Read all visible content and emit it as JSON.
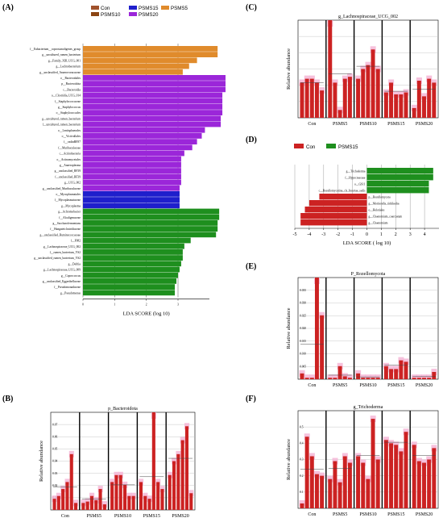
{
  "panels": [
    {
      "letter": "(A)"
    },
    {
      "letter": "(B)"
    },
    {
      "letter": "(C)"
    },
    {
      "letter": "(D)"
    },
    {
      "letter": "(E)"
    },
    {
      "letter": "(F)"
    }
  ],
  "colors": {
    "Con": "#a0522d",
    "PSMS5": "#e08b2c",
    "PSMS10": "#8b4513",
    "PSMS15": "#1f1fcc",
    "PSMS20": "#9b26d9",
    "green": "#1e8f1e",
    "red": "#cc2222",
    "pink": "#f4b6d6"
  },
  "chart_data": [
    {
      "panel": "A",
      "type": "bar",
      "orientation": "horizontal",
      "xlabel": "LDA SCORE (log 10)",
      "xlim": [
        0,
        4.5
      ],
      "ticks": [
        0,
        1,
        2,
        3
      ],
      "legend": [
        {
          "name": "Con",
          "color": "#a0522d"
        },
        {
          "name": "PSMS15",
          "color": "#1f1fcc"
        },
        {
          "name": "PSMS5",
          "color": "#e08b2c"
        },
        {
          "name": "PSMS10",
          "color": "#8b4513"
        },
        {
          "name": "PSMS20",
          "color": "#9b26d9"
        }
      ],
      "groups_order": [
        "PSMS5",
        "PSMS20",
        "PSMS15",
        "Con"
      ],
      "bars": [
        {
          "label": "f__Eubacterium__coprostanoligenes_group",
          "value": 4.25,
          "group": "PSMS5"
        },
        {
          "label": "g__uncultured_rumen_bacterium",
          "value": 4.25,
          "group": "PSMS5"
        },
        {
          "label": "g__Family_XIII_UCG_001",
          "value": 3.6,
          "group": "PSMS5"
        },
        {
          "label": "g__Lachnobacterium",
          "value": 3.35,
          "group": "PSMS5"
        },
        {
          "label": "g__unclassified_Anaerovoracaceae",
          "value": 3.15,
          "group": "PSMS5"
        },
        {
          "label": "o__Bacteroidales",
          "value": 4.5,
          "group": "PSMS20"
        },
        {
          "label": "p__Bacteroidota",
          "value": 4.5,
          "group": "PSMS20"
        },
        {
          "label": "c__Bacteroidia",
          "value": 4.5,
          "group": "PSMS20"
        },
        {
          "label": "o__Clostridia_UCG_014",
          "value": 4.4,
          "group": "PSMS20"
        },
        {
          "label": "f__Staphylococcaceae",
          "value": 4.4,
          "group": "PSMS20"
        },
        {
          "label": "g__Staphylococcus",
          "value": 4.4,
          "group": "PSMS20"
        },
        {
          "label": "o__Staphylococcales",
          "value": 4.4,
          "group": "PSMS20"
        },
        {
          "label": "g__uncultured_rumen_bacterium",
          "value": 4.35,
          "group": "PSMS20"
        },
        {
          "label": "f__uncultured_rumen_bacterium",
          "value": 4.35,
          "group": "PSMS20"
        },
        {
          "label": "o__Lentisphaerales",
          "value": 3.85,
          "group": "PSMS20"
        },
        {
          "label": "o__Victivallales",
          "value": 3.75,
          "group": "PSMS20"
        },
        {
          "label": "f__vadinBE97",
          "value": 3.6,
          "group": "PSMS20"
        },
        {
          "label": "f__Muribaculaceae",
          "value": 3.45,
          "group": "PSMS20"
        },
        {
          "label": "c__Actinobacteria",
          "value": 3.2,
          "group": "PSMS20"
        },
        {
          "label": "o__Actinomycetales",
          "value": 3.1,
          "group": "PSMS20"
        },
        {
          "label": "g__Anaeroplasma",
          "value": 3.1,
          "group": "PSMS20"
        },
        {
          "label": "g__unclassified_RF39",
          "value": 3.1,
          "group": "PSMS20"
        },
        {
          "label": "f__unclassified_RF39",
          "value": 3.1,
          "group": "PSMS20"
        },
        {
          "label": "g__UCG_002",
          "value": 3.1,
          "group": "PSMS20"
        },
        {
          "label": "g__unclassified_Muribaculaceae",
          "value": 3.05,
          "group": "PSMS20"
        },
        {
          "label": "o__Mycoplasmatales",
          "value": 3.05,
          "group": "PSMS15"
        },
        {
          "label": "f__Mycoplasmataceae",
          "value": 3.05,
          "group": "PSMS15"
        },
        {
          "label": "g__Mycoplasma",
          "value": 3.05,
          "group": "PSMS15"
        },
        {
          "label": "g__Achromobacter",
          "value": 4.3,
          "group": "Con"
        },
        {
          "label": "f__Alcaligenaceae",
          "value": 4.3,
          "group": "Con"
        },
        {
          "label": "g__Saccharofermentans",
          "value": 4.25,
          "group": "Con"
        },
        {
          "label": "f__Hungateiclostridiaceae",
          "value": 4.25,
          "group": "Con"
        },
        {
          "label": "g__unclassified_Ruminococcaceae",
          "value": 4.2,
          "group": "Con"
        },
        {
          "label": "f__F082",
          "value": 3.4,
          "group": "Con"
        },
        {
          "label": "g__Lachnospiraceae_UCG_002",
          "value": 3.2,
          "group": "Con"
        },
        {
          "label": "f__rumen_bacterium_YS2",
          "value": 3.15,
          "group": "Con"
        },
        {
          "label": "g__unclassified_rumen_bacterium_YS2",
          "value": 3.15,
          "group": "Con"
        },
        {
          "label": "g__Delftia",
          "value": 3.1,
          "group": "Con"
        },
        {
          "label": "g__Lachnospiraceae_UCG_009",
          "value": 3.05,
          "group": "Con"
        },
        {
          "label": "g__Coprococcus",
          "value": 3.0,
          "group": "Con"
        },
        {
          "label": "g__unclassified_Eggerthellaceae",
          "value": 2.95,
          "group": "Con"
        },
        {
          "label": "f__Pseudomonadaceae",
          "value": 2.9,
          "group": "Con"
        },
        {
          "label": "g__Pseudomonas",
          "value": 2.9,
          "group": "Con"
        }
      ]
    },
    {
      "panel": "B",
      "type": "bar",
      "title": "p_Bacteroidota",
      "ylabel": "Relative abundance",
      "yticks": [
        "0.01",
        "0.02",
        "0.03",
        "0.04",
        "0.05",
        "0.06",
        "0.07"
      ],
      "categories": [
        "Con",
        "PSMS5",
        "PSMS10",
        "PSMS15",
        "PSMS20"
      ],
      "ylim": [
        0,
        0.07
      ],
      "values": [
        [
          0.008,
          0.01,
          0.015,
          0.02,
          0.04,
          0.005
        ],
        [
          0.005,
          0.006,
          0.01,
          0.007,
          0.015,
          0.004
        ],
        [
          0.02,
          0.025,
          0.025,
          0.018,
          0.01,
          0.01
        ],
        [
          0.02,
          0.01,
          0.008,
          0.07,
          0.02,
          0.015
        ],
        [
          0.025,
          0.035,
          0.04,
          0.05,
          0.06,
          0.012
        ]
      ]
    },
    {
      "panel": "C",
      "type": "bar",
      "title": "g_Lachnospiraceae_UCG_002",
      "ylabel": "Relative abundance",
      "categories": [
        "Con",
        "PSMS5",
        "PSMS10",
        "PSMS15",
        "PSMS20"
      ],
      "ylim": [
        0,
        0.05
      ],
      "values": [
        [
          0.018,
          0.02,
          0.02,
          0.018,
          0.014
        ],
        [
          0.05,
          0.018,
          0.004,
          0.02,
          0.021
        ],
        [
          0.02,
          0.025,
          0.027,
          0.035,
          0.025
        ],
        [
          0.013,
          0.018,
          0.012,
          0.012,
          0.013
        ],
        [
          0.005,
          0.019,
          0.011,
          0.02,
          0.018
        ]
      ]
    },
    {
      "panel": "D",
      "type": "bar",
      "orientation": "horizontal",
      "xlabel": "LDA SCORE ( log 10)",
      "xlim": [
        -5,
        5
      ],
      "ticks": [
        -5,
        -4,
        -3,
        -2,
        -1,
        0,
        1,
        2,
        3,
        4
      ],
      "legend": [
        {
          "name": "Con",
          "color": "#cc2222"
        },
        {
          "name": "PSMS15",
          "color": "#1e8f1e"
        }
      ],
      "bars": [
        {
          "label": "g__Trichoderma",
          "value": 4.6,
          "group": "PSMS15"
        },
        {
          "label": "f__Hypocreaceae",
          "value": 4.6,
          "group": "PSMS15"
        },
        {
          "label": "o__GS11",
          "value": 4.3,
          "group": "PSMS15"
        },
        {
          "label": "c__Rozellomycotina_cls_Incertae_sedis",
          "value": 4.3,
          "group": "PSMS15"
        },
        {
          "label": "p__Rozellomycota",
          "value": -3.3,
          "group": "Con"
        },
        {
          "label": "g__Mortierella_rishikesha",
          "value": -4.0,
          "group": "Con"
        },
        {
          "label": "o__Helotiales",
          "value": -4.3,
          "group": "Con"
        },
        {
          "label": "g__Chaetomium_coarctatum",
          "value": -4.6,
          "group": "Con"
        },
        {
          "label": "g__Chaetomium",
          "value": -4.6,
          "group": "Con"
        }
      ]
    },
    {
      "panel": "E",
      "type": "bar",
      "title": "P_Rozellomycota",
      "ylabel": "Relative abundance",
      "yticks": [
        "0.005",
        "0.010",
        "0.015",
        "0.020",
        "0.025",
        "0.030",
        "0.035"
      ],
      "categories": [
        "Con",
        "PSMS5",
        "PSMS10",
        "PSMS15",
        "PSMS20"
      ],
      "ylim": [
        0,
        0.035
      ],
      "values": [
        [
          0.002,
          0.0005,
          0.0005,
          0.035,
          0.022
        ],
        [
          0.0005,
          0.0005,
          0.0045,
          0.001,
          0.0005
        ],
        [
          0.002,
          0.0005,
          0.0005,
          0.0005,
          0.0005
        ],
        [
          0.0045,
          0.0035,
          0.0035,
          0.0065,
          0.006
        ],
        [
          0.0005,
          0.0005,
          0.0005,
          0.0005,
          0.0025
        ]
      ]
    },
    {
      "panel": "F",
      "type": "bar",
      "title": "g_Trichoderma",
      "ylabel": "Relative abundance",
      "yticks": [
        "0.1",
        "0.2",
        "0.3",
        "0.4",
        "0.5"
      ],
      "categories": [
        "Con",
        "PSMS5",
        "PSMS10",
        "PSMS15",
        "PSMS20"
      ],
      "ylim": [
        0,
        0.6
      ],
      "values": [
        [
          0.03,
          0.44,
          0.32,
          0.21,
          0.2
        ],
        [
          0.18,
          0.29,
          0.16,
          0.32,
          0.28
        ],
        [
          0.32,
          0.28,
          0.18,
          0.55,
          0.3
        ],
        [
          0.42,
          0.4,
          0.39,
          0.35,
          0.47
        ],
        [
          0.39,
          0.29,
          0.28,
          0.3,
          0.37
        ]
      ]
    }
  ]
}
